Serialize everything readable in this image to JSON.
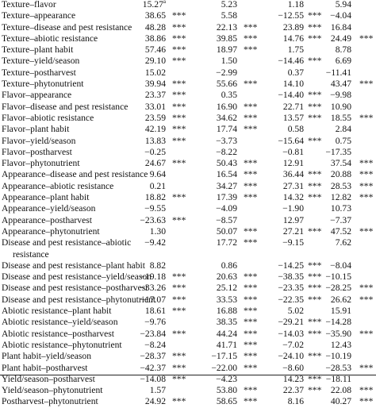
{
  "table": {
    "rows": [
      {
        "label": "Texture–flavor",
        "v1": "15.27",
        "v1_sup": "a",
        "s1": "",
        "v2": "5.23",
        "s2": "",
        "v3": "1.18",
        "s3": "",
        "v4": "5.94",
        "s4": ""
      },
      {
        "label": "Texture–appearance",
        "v1": "38.65",
        "v1_sup": "",
        "s1": "***",
        "v2": "5.58",
        "s2": "",
        "v3": "−12.55",
        "s3": "***",
        "v4": "−4.04",
        "s4": ""
      },
      {
        "label": "Texture–disease and pest resistance",
        "v1": "48.28",
        "v1_sup": "",
        "s1": "***",
        "v2": "22.13",
        "s2": "***",
        "v3": "23.89",
        "s3": "***",
        "v4": "16.84",
        "s4": ""
      },
      {
        "label": "Texture–abiotic resistance",
        "v1": "38.86",
        "v1_sup": "",
        "s1": "***",
        "v2": "39.85",
        "s2": "***",
        "v3": "14.76",
        "s3": "***",
        "v4": "24.49",
        "s4": "***"
      },
      {
        "label": "Texture–plant habit",
        "v1": "57.46",
        "v1_sup": "",
        "s1": "***",
        "v2": "18.97",
        "s2": "***",
        "v3": "1.75",
        "s3": "",
        "v4": "8.78",
        "s4": ""
      },
      {
        "label": "Texture–yield/season",
        "v1": "29.10",
        "v1_sup": "",
        "s1": "***",
        "v2": "1.50",
        "s2": "",
        "v3": "−14.46",
        "s3": "***",
        "v4": "6.69",
        "s4": ""
      },
      {
        "label": "Texture–postharvest",
        "v1": "15.02",
        "v1_sup": "",
        "s1": "",
        "v2": "−2.99",
        "s2": "",
        "v3": "0.37",
        "s3": "",
        "v4": "−11.41",
        "s4": ""
      },
      {
        "label": "Texture–phytonutrient",
        "v1": "39.94",
        "v1_sup": "",
        "s1": "***",
        "v2": "55.66",
        "s2": "***",
        "v3": "14.10",
        "s3": "",
        "v4": "43.47",
        "s4": "***"
      },
      {
        "label": "Flavor–appearance",
        "v1": "23.37",
        "v1_sup": "",
        "s1": "***",
        "v2": "0.35",
        "s2": "",
        "v3": "−14.40",
        "s3": "***",
        "v4": "−9.98",
        "s4": ""
      },
      {
        "label": "Flavor–disease and pest resistance",
        "v1": "33.01",
        "v1_sup": "",
        "s1": "***",
        "v2": "16.90",
        "s2": "***",
        "v3": "22.71",
        "s3": "***",
        "v4": "10.90",
        "s4": ""
      },
      {
        "label": "Flavor–abiotic resistance",
        "v1": "23.59",
        "v1_sup": "",
        "s1": "***",
        "v2": "34.62",
        "s2": "***",
        "v3": "13.57",
        "s3": "***",
        "v4": "18.55",
        "s4": "***"
      },
      {
        "label": "Flavor–plant habit",
        "v1": "42.19",
        "v1_sup": "",
        "s1": "***",
        "v2": "17.74",
        "s2": "***",
        "v3": "0.58",
        "s3": "",
        "v4": "2.84",
        "s4": ""
      },
      {
        "label": "Flavor–yield/season",
        "v1": "13.83",
        "v1_sup": "",
        "s1": "***",
        "v2": "−3.73",
        "s2": "",
        "v3": "−15.64",
        "s3": "***",
        "v4": "0.75",
        "s4": ""
      },
      {
        "label": "Flavor–postharvest",
        "v1": "−0.25",
        "v1_sup": "",
        "s1": "",
        "v2": "−8.22",
        "s2": "",
        "v3": "−0.81",
        "s3": "",
        "v4": "−17.35",
        "s4": ""
      },
      {
        "label": "Flavor–phytonutrient",
        "v1": "24.67",
        "v1_sup": "",
        "s1": "***",
        "v2": "50.43",
        "s2": "***",
        "v3": "12.91",
        "s3": "",
        "v4": "37.54",
        "s4": "***"
      },
      {
        "label": "Appearance–disease and pest resistance",
        "v1": "9.64",
        "v1_sup": "",
        "s1": "",
        "v2": "16.54",
        "s2": "***",
        "v3": "36.44",
        "s3": "***",
        "v4": "20.88",
        "s4": "***"
      },
      {
        "label": "Appearance–abiotic resistance",
        "v1": "0.21",
        "v1_sup": "",
        "s1": "",
        "v2": "34.27",
        "s2": "***",
        "v3": "27.31",
        "s3": "***",
        "v4": "28.53",
        "s4": "***"
      },
      {
        "label": "Appearance–plant habit",
        "v1": "18.82",
        "v1_sup": "",
        "s1": "***",
        "v2": "17.39",
        "s2": "***",
        "v3": "14.32",
        "s3": "***",
        "v4": "12.82",
        "s4": "***"
      },
      {
        "label": "Appearance–yield/season",
        "v1": "−9.55",
        "v1_sup": "",
        "s1": "",
        "v2": "−4.09",
        "s2": "",
        "v3": "−1.90",
        "s3": "",
        "v4": "10.73",
        "s4": ""
      },
      {
        "label": "Appearance–postharvest",
        "v1": "−23.63",
        "v1_sup": "",
        "s1": "***",
        "v2": "−8.57",
        "s2": "",
        "v3": "12.97",
        "s3": "",
        "v4": "−7.37",
        "s4": ""
      },
      {
        "label": "Appearance–phytonutrient",
        "v1": "1.30",
        "v1_sup": "",
        "s1": "",
        "v2": "50.07",
        "s2": "***",
        "v3": "27.21",
        "s3": "***",
        "v4": "47.52",
        "s4": "***"
      },
      {
        "label": "Disease and pest resistance–abiotic",
        "label2": "resistance",
        "v1": "−9.42",
        "v1_sup": "",
        "s1": "",
        "v2": "17.72",
        "s2": "***",
        "v3": "−9.15",
        "s3": "",
        "v4": "7.62",
        "s4": ""
      },
      {
        "label": "Disease and pest resistance–plant habit",
        "v1": "8.82",
        "v1_sup": "",
        "s1": "",
        "v2": "0.86",
        "s2": "",
        "v3": "−14.25",
        "s3": "***",
        "v4": "−8.04",
        "s4": ""
      },
      {
        "label": "Disease and pest resistance–yield/season",
        "v1": "−19.18",
        "v1_sup": "",
        "s1": "***",
        "v2": "20.63",
        "s2": "***",
        "v3": "−38.35",
        "s3": "***",
        "v4": "−10.15",
        "s4": ""
      },
      {
        "label": "Disease and pest resistance–postharvest",
        "v1": "−33.26",
        "v1_sup": "",
        "s1": "***",
        "v2": "25.12",
        "s2": "***",
        "v3": "−23.35",
        "s3": "***",
        "v4": "−28.25",
        "s4": "***"
      },
      {
        "label": "Disease and pest resistance–phytonutrient",
        "v1": "−17.07",
        "v1_sup": "",
        "s1": "***",
        "v2": "33.53",
        "s2": "***",
        "v3": "−22.35",
        "s3": "***",
        "v4": "26.62",
        "s4": "***"
      },
      {
        "label": "Abiotic resistance–plant habit",
        "v1": "18.61",
        "v1_sup": "",
        "s1": "***",
        "v2": "16.88",
        "s2": "***",
        "v3": "5.02",
        "s3": "",
        "v4": "15.91",
        "s4": ""
      },
      {
        "label": "Abiotic resistance–yield/season",
        "v1": "−9.76",
        "v1_sup": "",
        "s1": "",
        "v2": "38.35",
        "s2": "***",
        "v3": "−29.21",
        "s3": "***",
        "v4": "−14.28",
        "s4": ""
      },
      {
        "label": "Abiotic resistance–postharvest",
        "v1": "−23.84",
        "v1_sup": "",
        "s1": "***",
        "v2": "44.24",
        "s2": "***",
        "v3": "−14.03",
        "s3": "***",
        "v4": "−35.90",
        "s4": "***"
      },
      {
        "label": "Abiotic resistance–phytonutrient",
        "v1": "−8.24",
        "v1_sup": "",
        "s1": "",
        "v2": "41.71",
        "s2": "***",
        "v3": "−7.02",
        "s3": "",
        "v4": "12.43",
        "s4": ""
      },
      {
        "label": "Plant habit–yield/season",
        "v1": "−28.37",
        "v1_sup": "",
        "s1": "***",
        "v2": "−17.15",
        "s2": "***",
        "v3": "−24.10",
        "s3": "***",
        "v4": "−10.19",
        "s4": ""
      },
      {
        "label": "Plant habit–postharvest",
        "v1": "−42.37",
        "v1_sup": "",
        "s1": "***",
        "v2": "−22.00",
        "s2": "***",
        "v3": "−8.60",
        "s3": "",
        "v4": "−28.53",
        "s4": "***"
      },
      {
        "label": "Yield/season–postharvest",
        "v1": "−14.08",
        "v1_sup": "",
        "s1": "***",
        "v2": "−4.23",
        "s2": "",
        "v3": "14.23",
        "s3": "***",
        "v4": "−18.11",
        "s4": ""
      },
      {
        "label": "Yield/season–phytonutrient",
        "v1": "1.57",
        "v1_sup": "",
        "s1": "",
        "v2": "53.80",
        "s2": "***",
        "v3": "22.37",
        "s3": "***",
        "v4": "22.08",
        "s4": "***"
      },
      {
        "label": "Postharvest–phytonutrient",
        "v1": "24.92",
        "v1_sup": "",
        "s1": "***",
        "v2": "58.65",
        "s2": "***",
        "v3": "8.16",
        "s3": "",
        "v4": "40.27",
        "s4": "***"
      }
    ]
  }
}
